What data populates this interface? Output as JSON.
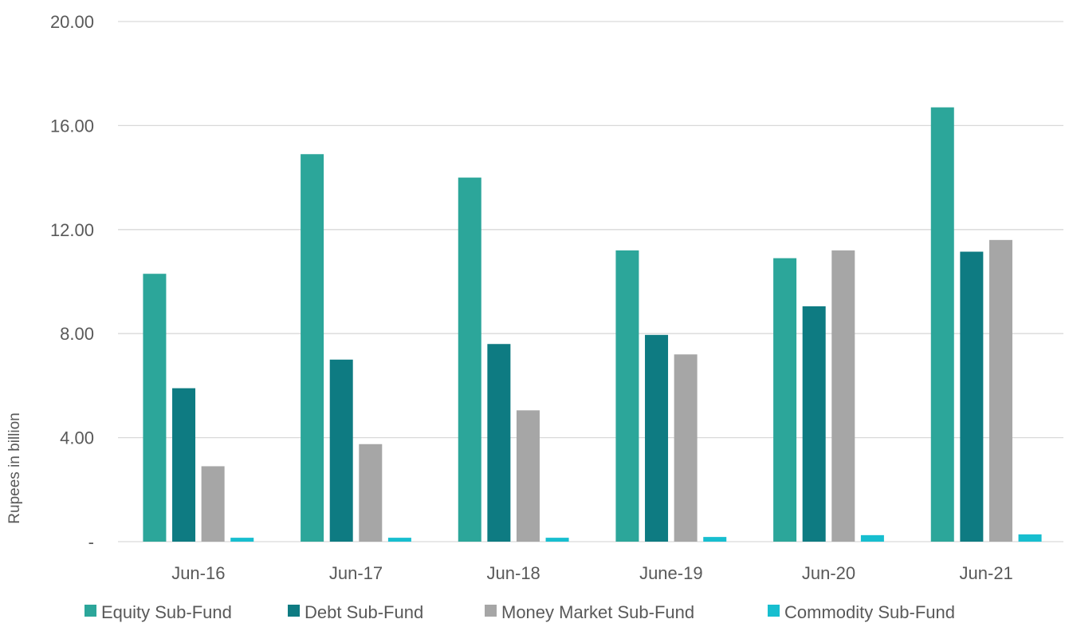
{
  "chart_data": {
    "type": "bar",
    "title": "",
    "xlabel": "",
    "ylabel": "Rupees in billion",
    "ylim": [
      0,
      20
    ],
    "y_ticks": [
      {
        "value": 0,
        "label": "-"
      },
      {
        "value": 4,
        "label": "4.00"
      },
      {
        "value": 8,
        "label": "8.00"
      },
      {
        "value": 12,
        "label": "12.00"
      },
      {
        "value": 16,
        "label": "16.00"
      },
      {
        "value": 20,
        "label": "20.00"
      }
    ],
    "grid": true,
    "legend_position": "bottom",
    "categories": [
      "Jun-16",
      "Jun-17",
      "Jun-18",
      "June-19",
      "Jun-20",
      "Jun-21"
    ],
    "series": [
      {
        "name": "Equity Sub-Fund",
        "color": "#2ca69a",
        "values": [
          10.3,
          14.9,
          14.0,
          11.2,
          10.9,
          16.7
        ]
      },
      {
        "name": "Debt Sub-Fund",
        "color": "#0e7b82",
        "values": [
          5.9,
          7.0,
          7.6,
          7.95,
          9.05,
          11.15
        ]
      },
      {
        "name": "Money Market Sub-Fund",
        "color": "#a6a6a6",
        "values": [
          2.9,
          3.75,
          5.05,
          7.2,
          11.2,
          11.6
        ]
      },
      {
        "name": "Commodity Sub-Fund",
        "color": "#17becf",
        "values": [
          0.15,
          0.15,
          0.15,
          0.18,
          0.25,
          0.28
        ]
      }
    ]
  }
}
